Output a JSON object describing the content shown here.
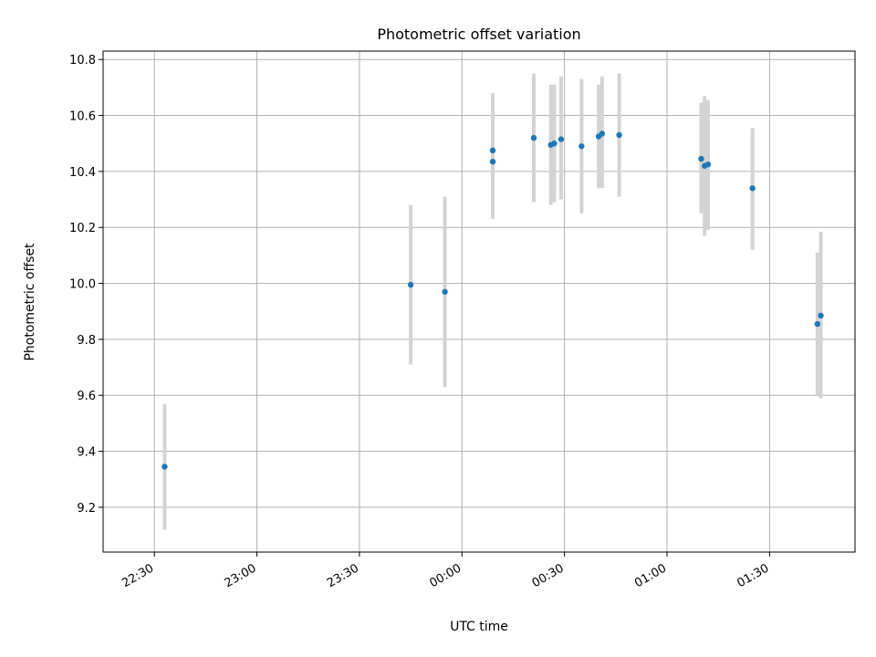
{
  "chart_data": {
    "type": "scatter",
    "title": "Photometric offset variation",
    "xlabel": "UTC time",
    "ylabel": "Photometric offset",
    "xlim": [
      "22:15",
      "01:55"
    ],
    "ylim": [
      9.04,
      10.83
    ],
    "xticks": [
      "22:30",
      "23:00",
      "23:30",
      "00:00",
      "00:30",
      "01:00",
      "01:30"
    ],
    "yticks": [
      "9.2",
      "9.4",
      "9.6",
      "9.8",
      "10.0",
      "10.2",
      "10.4",
      "10.6",
      "10.8"
    ],
    "grid": true,
    "error_bar_color": "#d3d3d3",
    "marker_color": "#1f77b4",
    "points": [
      {
        "time": "22:33",
        "y": 9.345,
        "ylow": 9.12,
        "yhigh": 9.57
      },
      {
        "time": "23:45",
        "y": 9.995,
        "ylow": 9.71,
        "yhigh": 10.28
      },
      {
        "time": "23:55",
        "y": 9.97,
        "ylow": 9.63,
        "yhigh": 10.31
      },
      {
        "time": "00:09",
        "y": 10.435,
        "ylow": 10.23,
        "yhigh": 10.64
      },
      {
        "time": "00:09",
        "y": 10.475,
        "ylow": 10.28,
        "yhigh": 10.68
      },
      {
        "time": "00:21",
        "y": 10.52,
        "ylow": 10.29,
        "yhigh": 10.75
      },
      {
        "time": "00:26",
        "y": 10.495,
        "ylow": 10.28,
        "yhigh": 10.71
      },
      {
        "time": "00:27",
        "y": 10.5,
        "ylow": 10.29,
        "yhigh": 10.71
      },
      {
        "time": "00:29",
        "y": 10.515,
        "ylow": 10.3,
        "yhigh": 10.74
      },
      {
        "time": "00:35",
        "y": 10.49,
        "ylow": 10.25,
        "yhigh": 10.73
      },
      {
        "time": "00:40",
        "y": 10.525,
        "ylow": 10.34,
        "yhigh": 10.71
      },
      {
        "time": "00:41",
        "y": 10.535,
        "ylow": 10.34,
        "yhigh": 10.74
      },
      {
        "time": "00:46",
        "y": 10.53,
        "ylow": 10.31,
        "yhigh": 10.75
      },
      {
        "time": "01:10",
        "y": 10.445,
        "ylow": 10.25,
        "yhigh": 10.645
      },
      {
        "time": "01:11",
        "y": 10.42,
        "ylow": 10.17,
        "yhigh": 10.67
      },
      {
        "time": "01:12",
        "y": 10.425,
        "ylow": 10.19,
        "yhigh": 10.655
      },
      {
        "time": "01:25",
        "y": 10.34,
        "ylow": 10.12,
        "yhigh": 10.555
      },
      {
        "time": "01:44",
        "y": 9.855,
        "ylow": 9.6,
        "yhigh": 10.11
      },
      {
        "time": "01:45",
        "y": 9.885,
        "ylow": 9.59,
        "yhigh": 10.185
      }
    ]
  }
}
